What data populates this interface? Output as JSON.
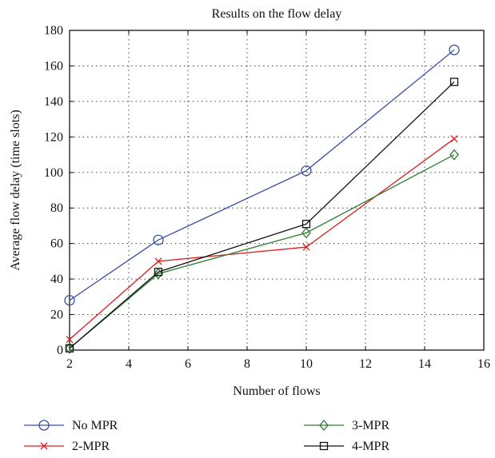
{
  "chart_data": {
    "type": "line",
    "title": "Results on the flow delay",
    "xlabel": "Number of flows",
    "ylabel": "Average flow delay (time slots)",
    "xlim": [
      2,
      16
    ],
    "ylim": [
      0,
      180
    ],
    "xticks": [
      2,
      4,
      6,
      8,
      10,
      12,
      14,
      16
    ],
    "yticks": [
      0,
      20,
      40,
      60,
      80,
      100,
      120,
      140,
      160,
      180
    ],
    "grid": true,
    "legend_position": "bottom",
    "series": [
      {
        "name": "No MPR",
        "color": "#3a4fa3",
        "marker": "circle",
        "x": [
          2,
          5,
          10,
          15
        ],
        "y": [
          28,
          62,
          101,
          169
        ]
      },
      {
        "name": "2-MPR",
        "color": "#e31a1c",
        "marker": "x",
        "x": [
          2,
          5,
          10,
          15
        ],
        "y": [
          6,
          50,
          58,
          119
        ]
      },
      {
        "name": "3-MPR",
        "color": "#2e7d32",
        "marker": "diamond",
        "x": [
          2,
          5,
          10,
          15
        ],
        "y": [
          1,
          43,
          66,
          110
        ]
      },
      {
        "name": "4-MPR",
        "color": "#111111",
        "marker": "square",
        "x": [
          2,
          5,
          10,
          15
        ],
        "y": [
          1,
          44,
          71,
          151
        ]
      }
    ]
  }
}
